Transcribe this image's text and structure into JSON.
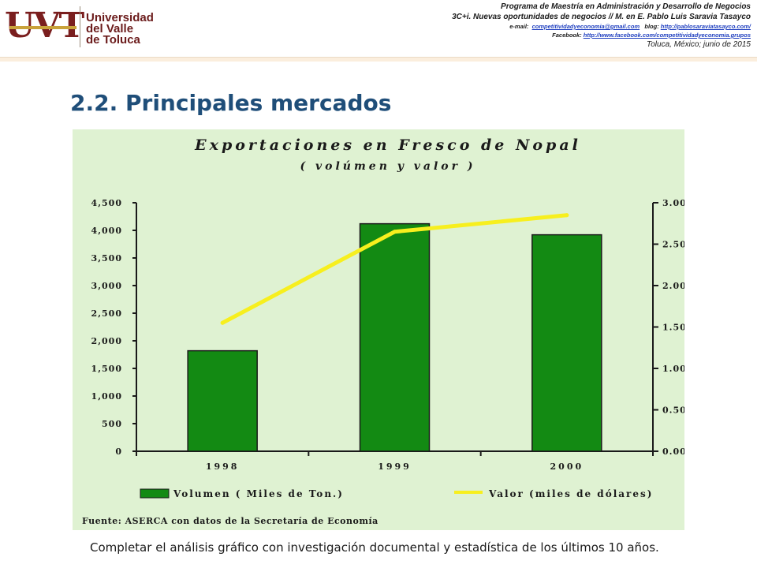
{
  "header": {
    "logo": {
      "mark": "UVT",
      "line1": "Universidad",
      "line2": "del Valle",
      "line3": "de Toluca"
    },
    "program": "Programa de Maestría en Administración y Desarrollo de Negocios",
    "course": "3C+i. Nuevas oportunidades  de negocios // M. en E. Pablo Luis Saravia Tasayco",
    "email_label": "e-mail:",
    "email": "competitividadyeconomia@gmail.com",
    "blog_label": "blog:",
    "blog": "http://pablosaraviatasayco.com/",
    "facebook_label": "Facebook:",
    "facebook": "http://www.facebook.com/competitividadyeconomia.grupos",
    "place_date": "Toluca, México; junio de 2015"
  },
  "page": {
    "title": "2.2. Principales mercados",
    "note": "Completar el análisis gráfico con investigación documental y estadística de los últimos 10 años."
  },
  "colors": {
    "bar": "#138a13",
    "line": "#f7ef1e",
    "chart_bg": "#dff2d2",
    "title": "#1f4e79"
  },
  "chart_data": {
    "type": "bar",
    "title": "Exportaciones en Fresco de Nopal",
    "subtitle": "( volúmen y valor )",
    "categories": [
      "1998",
      "1999",
      "2000"
    ],
    "series": [
      {
        "name": "Volumen ( Miles de Ton.)",
        "type": "bar",
        "axis": "left",
        "values": [
          1820,
          4120,
          3920
        ]
      },
      {
        "name": "Valor (miles de dólares)",
        "type": "line",
        "axis": "right",
        "values": [
          1.55,
          2.65,
          2.85
        ]
      }
    ],
    "y_left": {
      "range": [
        0,
        4500
      ],
      "ticks": [
        "0",
        "500",
        "1,000",
        "1,500",
        "2,000",
        "2,500",
        "3,000",
        "3,500",
        "4,000",
        "4,500"
      ]
    },
    "y_right": {
      "range": [
        0,
        3.0
      ],
      "ticks": [
        "0.00",
        "0.50",
        "1.00",
        "1.50",
        "2.00",
        "2.50",
        "3.00"
      ]
    },
    "grid": false,
    "legend_position": "bottom",
    "source": "Fuente: ASERCA con datos de la Secretaría de Economía"
  }
}
